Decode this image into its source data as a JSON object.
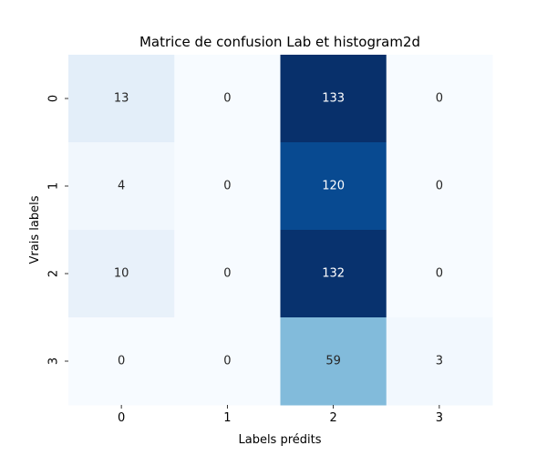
{
  "chart_data": {
    "type": "heatmap",
    "title": "Matrice de confusion Lab et histogram2d",
    "xlabel": "Labels prédits",
    "ylabel": "Vrais labels",
    "x_categories": [
      "0",
      "1",
      "2",
      "3"
    ],
    "y_categories": [
      "0",
      "1",
      "2",
      "3"
    ],
    "values": [
      [
        13,
        0,
        133,
        0
      ],
      [
        4,
        0,
        120,
        0
      ],
      [
        10,
        0,
        132,
        0
      ],
      [
        0,
        0,
        59,
        3
      ]
    ],
    "colormap": "Blues",
    "color_range": [
      0,
      133
    ],
    "colorbar": false,
    "grid": false
  }
}
